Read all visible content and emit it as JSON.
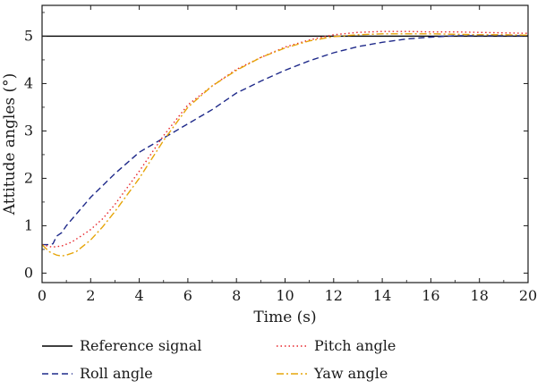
{
  "chart_data": {
    "type": "line",
    "title": "",
    "xlabel": "Time (s)",
    "ylabel": "Attitude angles (°)",
    "xlim": [
      0,
      20
    ],
    "ylim": [
      -0.2,
      5.65
    ],
    "xticks": [
      0,
      2,
      4,
      6,
      8,
      10,
      12,
      14,
      16,
      18,
      20
    ],
    "yticks": [
      0,
      1,
      2,
      3,
      4,
      5
    ],
    "grid": false,
    "legend_position": "below",
    "series": [
      {
        "name": "Reference signal",
        "color": "#000000",
        "style": "solid",
        "x": [
          0,
          20
        ],
        "y": [
          5,
          5
        ]
      },
      {
        "name": "Roll angle",
        "color": "#1f2a8a",
        "style": "dashed",
        "x": [
          0,
          0.3,
          0.45,
          0.6,
          0.8,
          1.0,
          1.5,
          2,
          3,
          4,
          5,
          6,
          7,
          8,
          9,
          10,
          11,
          12,
          13,
          14,
          15,
          16,
          17,
          18,
          19,
          20
        ],
        "y": [
          0.6,
          0.6,
          0.62,
          0.78,
          0.85,
          1.0,
          1.3,
          1.6,
          2.1,
          2.55,
          2.85,
          3.15,
          3.45,
          3.8,
          4.05,
          4.28,
          4.48,
          4.65,
          4.78,
          4.87,
          4.94,
          4.98,
          5.01,
          5.01,
          5.01,
          5.01
        ]
      },
      {
        "name": "Pitch angle",
        "color": "#e8242a",
        "style": "dotted",
        "x": [
          0,
          0.4,
          0.8,
          1.2,
          1.6,
          2,
          2.5,
          3,
          4,
          5,
          6,
          7,
          8,
          9,
          10,
          11,
          12,
          13,
          14,
          15,
          16,
          17,
          18,
          19,
          20
        ],
        "y": [
          0.6,
          0.55,
          0.57,
          0.65,
          0.78,
          0.92,
          1.15,
          1.45,
          2.15,
          2.9,
          3.55,
          3.95,
          4.3,
          4.55,
          4.77,
          4.92,
          5.03,
          5.08,
          5.1,
          5.1,
          5.09,
          5.09,
          5.08,
          5.07,
          5.06
        ]
      },
      {
        "name": "Yaw angle",
        "color": "#e6a50a",
        "style": "dashdot",
        "x": [
          0,
          0.3,
          0.6,
          0.8,
          1.0,
          1.4,
          2,
          2.5,
          3,
          3.5,
          4,
          5,
          6,
          7,
          8,
          9,
          10,
          11,
          12,
          13,
          14,
          15,
          16,
          17,
          18,
          19,
          20
        ],
        "y": [
          0.6,
          0.45,
          0.38,
          0.36,
          0.38,
          0.45,
          0.7,
          0.98,
          1.3,
          1.65,
          2.0,
          2.8,
          3.5,
          3.95,
          4.28,
          4.55,
          4.75,
          4.9,
          4.99,
          5.03,
          5.05,
          5.05,
          5.05,
          5.04,
          5.03,
          5.03,
          5.02
        ]
      }
    ]
  }
}
